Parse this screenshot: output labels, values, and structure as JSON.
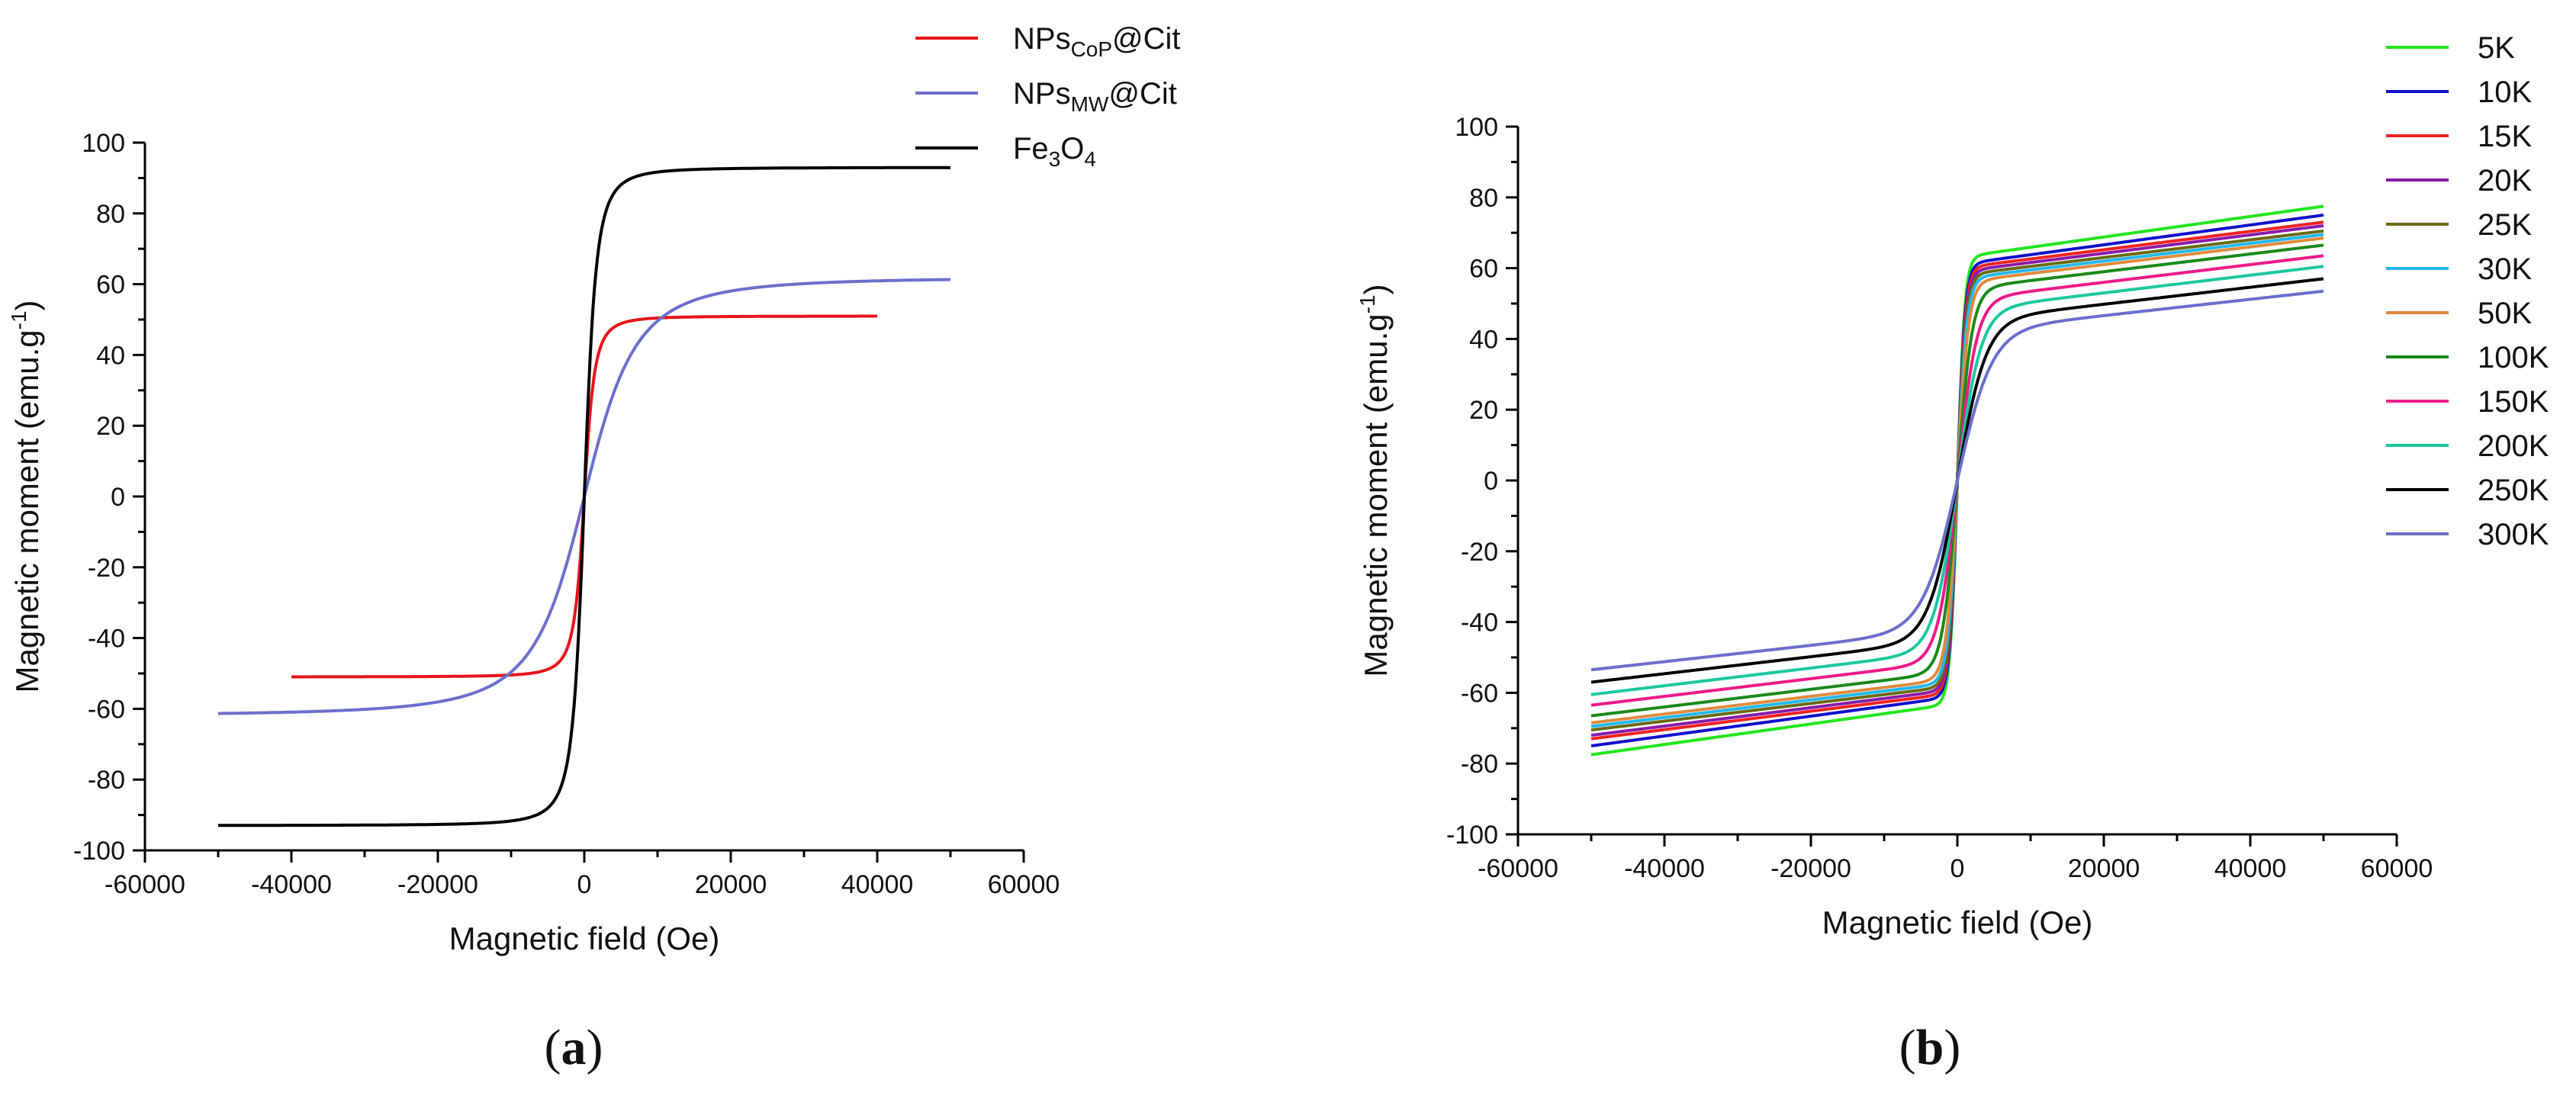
{
  "panel_a_label": "(a)",
  "panel_b_label": "(b)",
  "chart_data": [
    {
      "id": "a",
      "type": "line",
      "xlabel": "Magnetic field (Oe)",
      "ylabel": "Magnetic moment (emu.g",
      "ylabel_sup": "-1",
      "ylabel_end": ")",
      "xlim": [
        -60000,
        60000
      ],
      "ylim": [
        -100,
        100
      ],
      "xticks": [
        -60000,
        -40000,
        -20000,
        0,
        20000,
        40000,
        60000
      ],
      "yticks": [
        -100,
        -80,
        -60,
        -40,
        -20,
        0,
        20,
        40,
        60,
        80,
        100
      ],
      "legend_position": "top-right",
      "series": [
        {
          "name": "NPsCoP@Cit",
          "label_main": "NPs",
          "label_sub": "CoP",
          "label_tail": "@Cit",
          "color": "#e8141b",
          "ms": 51,
          "h0": 1500,
          "xmin": -40000,
          "xmax": 40000,
          "linear": 0
        },
        {
          "name": "NPsMW@Cit",
          "label_main": "NPs",
          "label_sub": "MW",
          "label_tail": "@Cit",
          "color": "#6b6fcc",
          "ms": 62,
          "h0": 7500,
          "xmin": -50000,
          "xmax": 50000,
          "linear": 0
        },
        {
          "name": "Fe3O4",
          "label_parts": [
            "Fe",
            "3",
            "O",
            "4"
          ],
          "color": "#000000",
          "ms": 93,
          "h0": 1700,
          "xmin": -50000,
          "xmax": 50000,
          "linear": 0
        }
      ]
    },
    {
      "id": "b",
      "type": "line",
      "xlabel": "Magnetic field (Oe)",
      "ylabel": "Magnetic moment (emu.g",
      "ylabel_sup": "-1",
      "ylabel_end": ")",
      "xlim": [
        -60000,
        60000
      ],
      "ylim": [
        -100,
        100
      ],
      "xticks": [
        -60000,
        -40000,
        -20000,
        0,
        20000,
        40000,
        60000
      ],
      "yticks": [
        -100,
        -80,
        -60,
        -40,
        -20,
        0,
        20,
        40,
        60,
        80,
        100
      ],
      "legend_position": "top-right",
      "series": [
        {
          "name": "5K",
          "color": "#22e61e",
          "ms": 63,
          "h0": 1000,
          "linear": 0.00029,
          "xmin": -50000,
          "xmax": 50000
        },
        {
          "name": "10K",
          "color": "#1010cc",
          "ms": 61,
          "h0": 1050,
          "linear": 0.00028,
          "xmin": -50000,
          "xmax": 50000
        },
        {
          "name": "15K",
          "color": "#ee2222",
          "ms": 60,
          "h0": 1100,
          "linear": 0.00026,
          "xmin": -50000,
          "xmax": 50000
        },
        {
          "name": "20K",
          "color": "#8a1aaa",
          "ms": 59,
          "h0": 1150,
          "linear": 0.00026,
          "xmin": -50000,
          "xmax": 50000
        },
        {
          "name": "25K",
          "color": "#6b6a12",
          "ms": 58,
          "h0": 1200,
          "linear": 0.00025,
          "xmin": -50000,
          "xmax": 50000
        },
        {
          "name": "30K",
          "color": "#22b8ee",
          "ms": 57,
          "h0": 1300,
          "linear": 0.00025,
          "xmin": -50000,
          "xmax": 50000
        },
        {
          "name": "50K",
          "color": "#e08a3c",
          "ms": 56,
          "h0": 1500,
          "linear": 0.00025,
          "xmin": -50000,
          "xmax": 50000
        },
        {
          "name": "100K",
          "color": "#1a8a1a",
          "ms": 54,
          "h0": 2000,
          "linear": 0.00025,
          "xmin": -50000,
          "xmax": 50000
        },
        {
          "name": "150K",
          "color": "#ee1a8a",
          "ms": 51,
          "h0": 2600,
          "linear": 0.00025,
          "xmin": -50000,
          "xmax": 50000
        },
        {
          "name": "200K",
          "color": "#1ac8a0",
          "ms": 48,
          "h0": 3200,
          "linear": 0.00025,
          "xmin": -50000,
          "xmax": 50000
        },
        {
          "name": "250K",
          "color": "#000000",
          "ms": 45,
          "h0": 3900,
          "linear": 0.00024,
          "xmin": -50000,
          "xmax": 50000
        },
        {
          "name": "300K",
          "color": "#6b6fcc",
          "ms": 42,
          "h0": 4700,
          "linear": 0.00023,
          "xmin": -50000,
          "xmax": 50000
        }
      ]
    }
  ]
}
